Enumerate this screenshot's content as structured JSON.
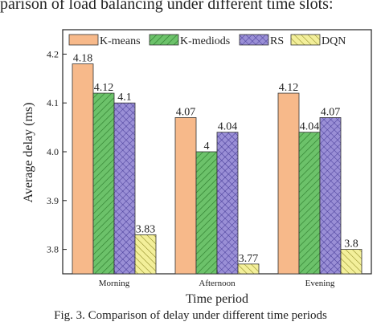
{
  "header_text": "parison of load balancing under different time slots:",
  "caption": "Fig. 3.   Comparison of delay under different time periods",
  "chart_data": {
    "type": "bar",
    "title": "",
    "xlabel": "Time period",
    "ylabel": "Average delay (ms)",
    "ylim": [
      3.75,
      4.25
    ],
    "yticks": [
      "3.8",
      "3.9",
      "4.0",
      "4.1",
      "4.2"
    ],
    "categories": [
      "Morning",
      "Afternoon",
      "Evening"
    ],
    "legend_position": "top",
    "series": [
      {
        "name": "K-means",
        "values": [
          4.18,
          4.07,
          4.12
        ],
        "labels": [
          "4.18",
          "4.07",
          "4.12"
        ],
        "color": "#f7b98a",
        "pattern": "solid"
      },
      {
        "name": "K-mediods",
        "values": [
          4.12,
          4.0,
          4.04
        ],
        "labels": [
          "4.12",
          "4",
          "4.04"
        ],
        "color": "#6cc26a",
        "pattern": "diagonal-hatch"
      },
      {
        "name": "RS",
        "values": [
          4.1,
          4.04,
          4.07
        ],
        "labels": [
          "4.1",
          "4.04",
          "4.07"
        ],
        "color": "#9a8fd6",
        "pattern": "cross-hatch"
      },
      {
        "name": "DQN",
        "values": [
          3.83,
          3.77,
          3.8
        ],
        "labels": [
          "3.83",
          "3.77",
          "3.8"
        ],
        "color": "#f3ef9a",
        "pattern": "diagonal-hatch"
      }
    ]
  }
}
